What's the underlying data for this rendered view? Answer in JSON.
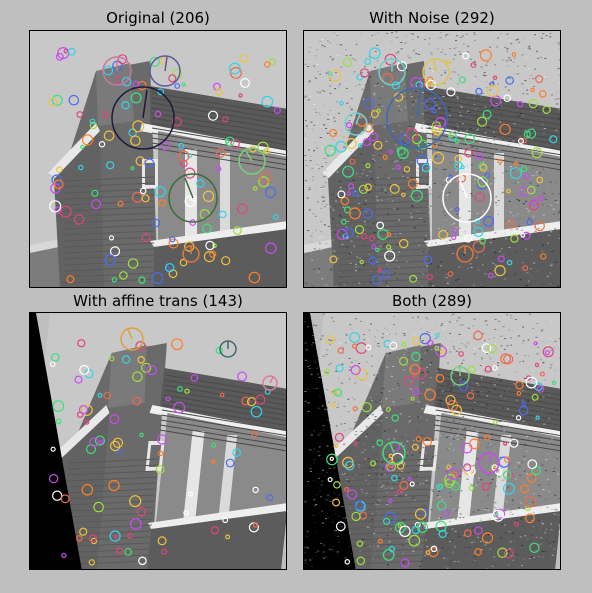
{
  "figure": {
    "background": "#bfbfbf",
    "panels": [
      {
        "title": "Original (206)",
        "variant": "original"
      },
      {
        "title": "With Noise (292)",
        "variant": "noise"
      },
      {
        "title": "With affine trans (143)",
        "variant": "affine"
      },
      {
        "title": "Both (289)",
        "variant": "both"
      }
    ]
  },
  "keypoint_palette": [
    "#e0457b",
    "#3ee07a",
    "#4a6cf0",
    "#f0c23e",
    "#ff7f2a",
    "#c94cf0",
    "#34d4e8",
    "#9de03e",
    "#f06a4a",
    "#ffffff"
  ]
}
